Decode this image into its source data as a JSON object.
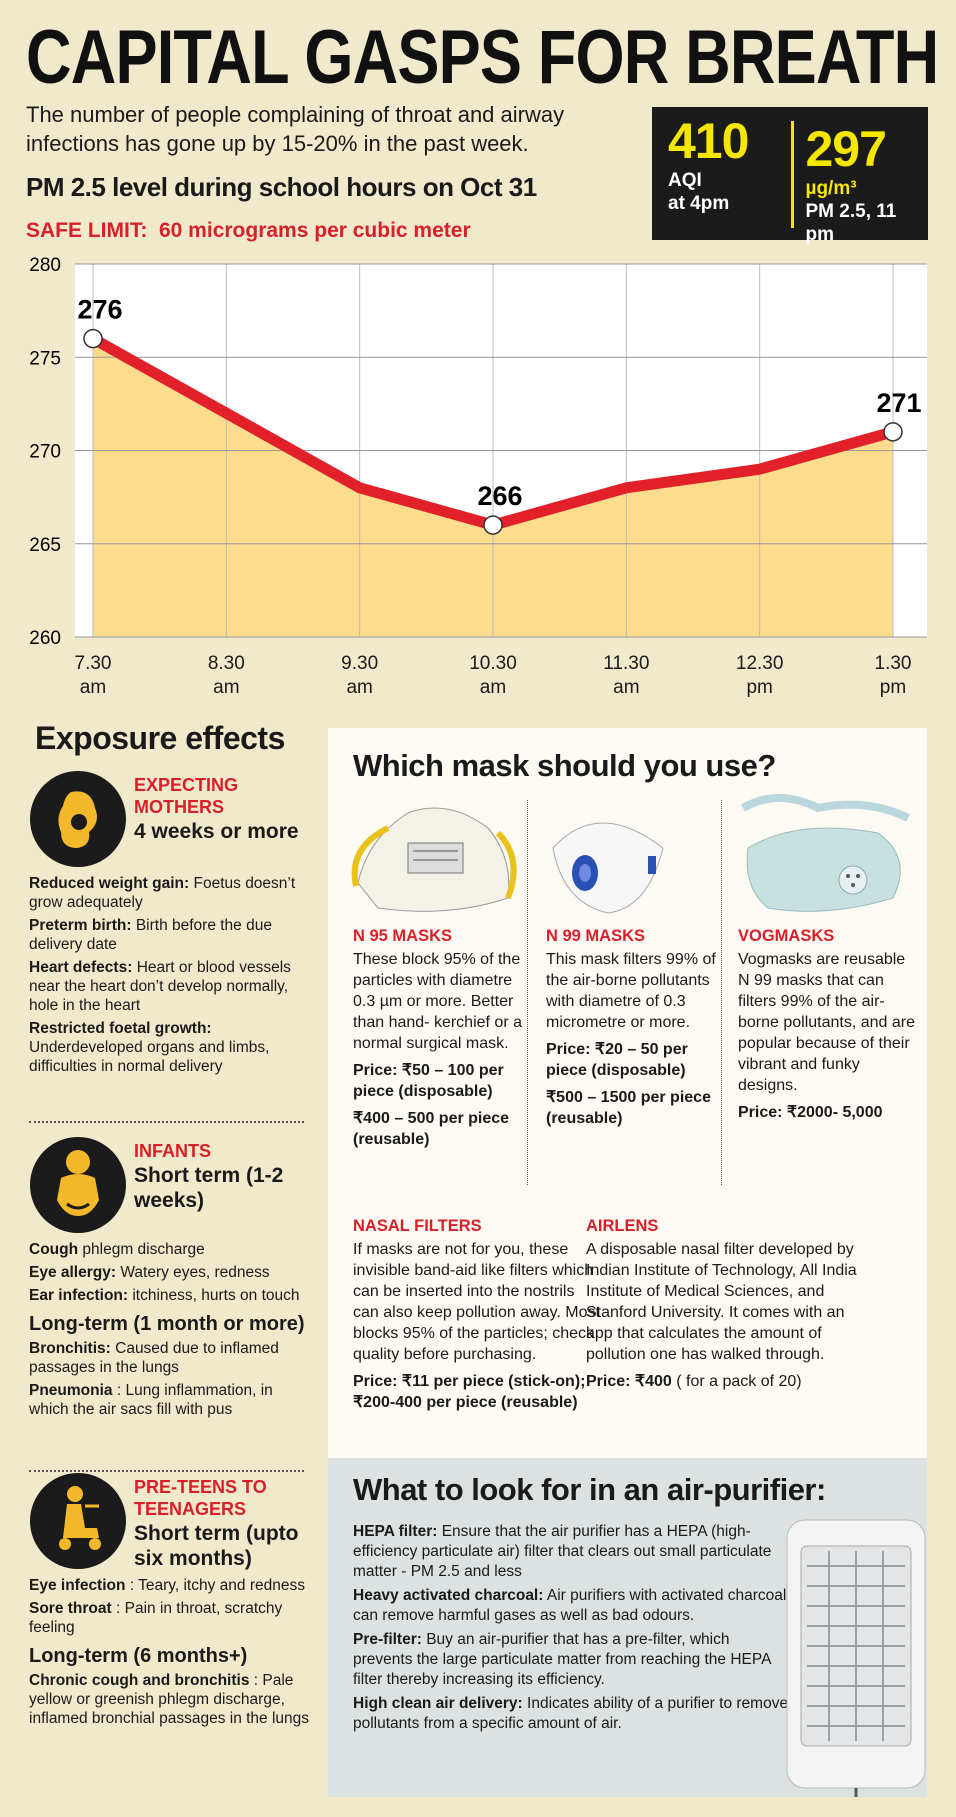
{
  "header": {
    "title": "CAPITAL GASPS FOR BREATH",
    "subtitle": "The number of people complaining of throat and airway infections has gone up by 15-20% in the past week."
  },
  "stats": [
    {
      "value": 410,
      "unit": "AQI",
      "note": "at 4pm"
    },
    {
      "value": 297,
      "unit": "µg/m³",
      "note": "PM 2.5, 11 pm"
    }
  ],
  "chart_data": {
    "type": "line",
    "title": "PM 2.5 level during school hours on Oct 31",
    "annotation": "SAFE LIMIT:  60 micrograms per cubic meter",
    "categories": [
      "7.30 am",
      "8.30 am",
      "9.30 am",
      "10.30 am",
      "11.30 am",
      "12.30 pm",
      "1.30 pm"
    ],
    "values": [
      276,
      272,
      268,
      266,
      268,
      269,
      271
    ],
    "value_labels": [
      "276",
      null,
      null,
      "266",
      null,
      null,
      "271"
    ],
    "color": "#e1202a",
    "fill_color": "#fddc8e",
    "ylim": [
      260,
      280
    ],
    "yticks": [
      260,
      265,
      270,
      275,
      280
    ],
    "grid": true
  },
  "exposure": {
    "title": "Exposure effects",
    "groups": [
      {
        "heading": "EXPECTING MOTHERS",
        "duration": "4 weeks or more",
        "items": [
          {
            "term": "Reduced weight gain:",
            "text": "Foetus doesn’t grow adequately"
          },
          {
            "term": "Preterm birth:",
            "text": "Birth before the due delivery date"
          },
          {
            "term": "Heart defects:",
            "text": "Heart or blood vessels near the heart don’t develop normally, hole in the heart"
          },
          {
            "term": "Restricted foetal growth:",
            "text": "Underdeveloped organs and limbs, difficulties in normal delivery"
          }
        ]
      },
      {
        "heading": "INFANTS",
        "duration": "Short term (1-2 weeks)",
        "items": [
          {
            "term": "Cough",
            "text": "phlegm discharge"
          },
          {
            "term": "Eye allergy:",
            "text": "Watery eyes, redness"
          },
          {
            "term": "Ear infection:",
            "text": "itchiness, hurts on touch"
          }
        ],
        "long_term": "Long-term (1 month or more)",
        "long_items": [
          {
            "term": "Bronchitis:",
            "text": "Caused due to inflamed passages in the lungs"
          },
          {
            "term": "Pneumonia",
            "text": ": Lung inflammation, in which the air sacs fill with pus"
          }
        ]
      },
      {
        "heading": "PRE-TEENS TO TEENAGERS",
        "duration": "Short term (upto six months)",
        "items": [
          {
            "term": "Eye infection",
            "text": ": Teary, itchy and redness"
          },
          {
            "term": "Sore throat",
            "text": ": Pain in throat, scratchy feeling"
          }
        ],
        "long_term": "Long-term (6 months+)",
        "long_items": [
          {
            "term": "Chronic cough and bronchitis",
            "text": ": Pale yellow or greenish phlegm discharge, inflamed bronchial passages in the lungs"
          }
        ]
      }
    ]
  },
  "masks": {
    "title": "Which mask should you use?",
    "items": [
      {
        "name": "N 95 MASKS",
        "text": "These block 95% of the particles with diametre 0.3 µm or more. Better than hand- kerchief or a normal surgical mask.",
        "prices": [
          "Price: ₹50 – 100 per piece (disposable)",
          "₹400 – 500 per piece (reusable)"
        ]
      },
      {
        "name": "N 99 MASKS",
        "text": "This mask filters 99% of the air-borne pollutants with diametre of 0.3 micrometre or more.",
        "prices": [
          "Price: ₹20 – 50 per piece (disposable)",
          "₹500 – 1500 per piece (reusable)"
        ]
      },
      {
        "name": "VOGMASKS",
        "text": "Vogmasks are reusable N 99 masks that can filters 99% of the air-borne pollutants, and are popular because of their vibrant and funky designs.",
        "prices": [
          "Price: ₹2000- 5,000"
        ]
      }
    ],
    "others": [
      {
        "name": "NASAL FILTERS",
        "text": "If masks are not for you, these invisible band-aid like filters which can be inserted into the nostrils can also keep pollution away. Most blocks 95% of the particles; check quality before purchasing.",
        "price": "Price: ₹11 per piece (stick-on); ₹200-400 per piece (reusable)"
      },
      {
        "name": "AIRLENS",
        "text": "A disposable nasal filter developed by Indian Institute of Technology, All India Institute of Medical Sciences, and Stanford University. It comes with an app that calculates the amount of pollution one has walked through.",
        "price": "Price: ₹400",
        "price_note": " ( for a pack of 20)"
      }
    ]
  },
  "purifier": {
    "title": "What to look for in an air-purifier:",
    "items": [
      {
        "term": "HEPA filter:",
        "text": "Ensure that the air purifier has a HEPA (high-efficiency particulate air) filter that clears out small particulate matter - PM 2.5 and less"
      },
      {
        "term": "Heavy activated charcoal:",
        "text": "Air purifiers with activated charcoal can remove harmful gases as well as bad odours."
      },
      {
        "term": "Pre-filter:",
        "text": "Buy an air-purifier that has a pre-filter, which prevents the large particulate matter from reaching the HEPA filter thereby increasing its efficiency."
      },
      {
        "term": "High clean air delivery:",
        "text": "Indicates ability of a purifier to remove pollutants from a specific amount of air."
      }
    ]
  }
}
